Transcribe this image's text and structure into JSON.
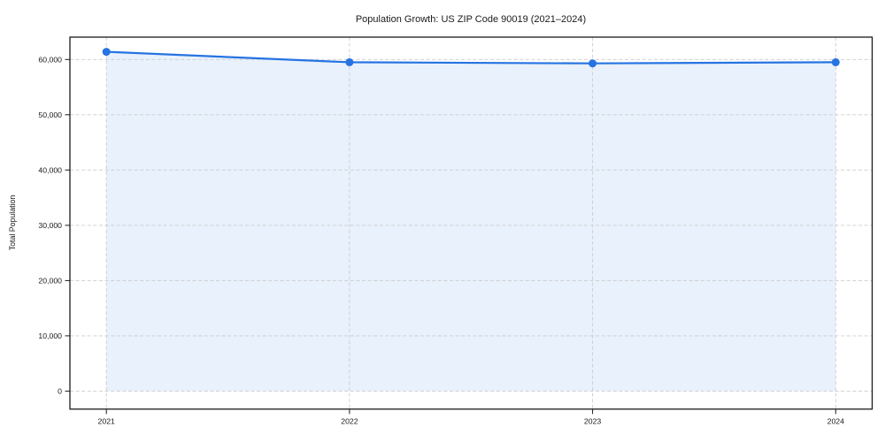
{
  "chart_data": {
    "type": "line",
    "title": "Population Growth: US ZIP Code 90019 (2021–2024)",
    "xlabel": "",
    "ylabel": "Total Population",
    "x": [
      2021,
      2022,
      2023,
      2024
    ],
    "x_tick_labels": [
      "2021",
      "2022",
      "2023",
      "2024"
    ],
    "series": [
      {
        "name": "Total Population",
        "values": [
          61400,
          59500,
          59300,
          59500
        ]
      }
    ],
    "y_ticks": [
      0,
      10000,
      20000,
      30000,
      40000,
      50000,
      60000
    ],
    "y_tick_labels": [
      "0",
      "10,000",
      "20,000",
      "30,000",
      "40,000",
      "50,000",
      "60,000"
    ],
    "xlim": [
      2020.85,
      2024.15
    ],
    "ylim": [
      -3264,
      64048
    ],
    "grid": true,
    "grid_style": "dashed",
    "area_fill": true,
    "marker": "circle",
    "legend_position": "none",
    "colors": {
      "line": "#2673e2",
      "marker": "#2673e2",
      "area": "#e9f1fc",
      "grid": "#cccccc",
      "axis": "#1a1a1a",
      "text": "#1a1a1a",
      "background": "#ffffff"
    }
  }
}
